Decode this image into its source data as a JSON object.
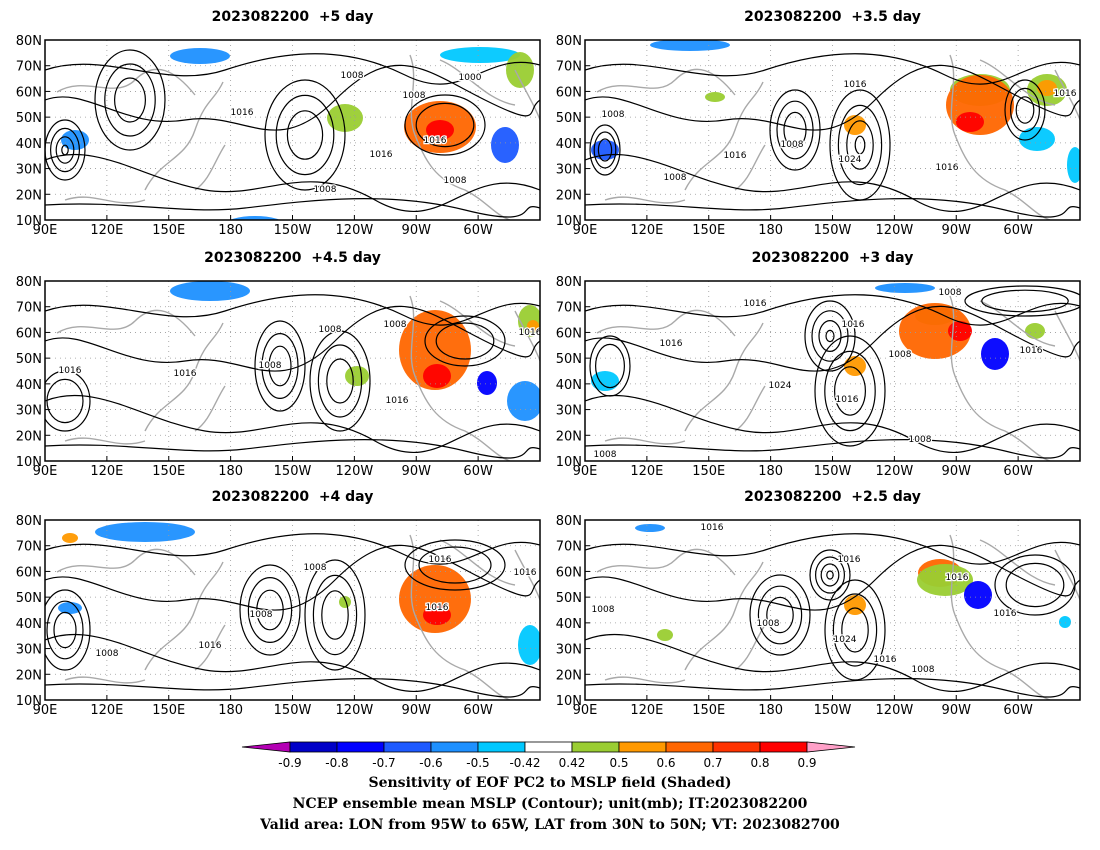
{
  "panels": [
    {
      "title": "2023082200  +5 day",
      "contour_labels": [
        "1008",
        "1000",
        "1016",
        "1008",
        "1016",
        "1008",
        "1016",
        "1008"
      ]
    },
    {
      "title": "2023082200  +3.5 day",
      "contour_labels": [
        "1016",
        "1016",
        "1008",
        "1008",
        "1016",
        "1024",
        "1008",
        "1016"
      ]
    },
    {
      "title": "2023082200  +4.5 day",
      "contour_labels": [
        "1008",
        "1016",
        "1016",
        "1008",
        "1008",
        "1016",
        "1016"
      ]
    },
    {
      "title": "2023082200  +3 day",
      "contour_labels": [
        "1016",
        "1008",
        "1016",
        "1016",
        "1008",
        "1024",
        "1016",
        "1016",
        "1008",
        "1008"
      ]
    },
    {
      "title": "2023082200  +4 day",
      "contour_labels": [
        "1008",
        "1016",
        "1016",
        "1016",
        "1008",
        "1016",
        "1008"
      ]
    },
    {
      "title": "2023082200  +2.5 day",
      "contour_labels": [
        "1016",
        "1016",
        "1016",
        "1008",
        "1008",
        "1024",
        "1016",
        "1016",
        "1008"
      ]
    }
  ],
  "lat_ticks": [
    "10N",
    "20N",
    "30N",
    "40N",
    "50N",
    "60N",
    "70N",
    "80N"
  ],
  "lon_ticks": [
    "90E",
    "120E",
    "150E",
    "180",
    "150W",
    "120W",
    "90W",
    "60W"
  ],
  "colorbar": {
    "labels": [
      "-0.9",
      "-0.8",
      "-0.7",
      "-0.6",
      "-0.5",
      "-0.42",
      "0.42",
      "0.5",
      "0.6",
      "0.7",
      "0.8",
      "0.9"
    ],
    "colors": [
      "#0000c8",
      "#0000ff",
      "#1e5aff",
      "#1e90ff",
      "#00c8ff",
      "#ffffff",
      "#9acd32",
      "#ff9900",
      "#ff6600",
      "#ff3300",
      "#ff0000"
    ],
    "low_color": "#b400b4",
    "high_color": "#ffa0c8"
  },
  "captions": [
    "Sensitivity of EOF PC2 to MSLP field (Shaded)",
    "NCEP ensemble mean MSLP (Contour); unit(mb); IT:2023082200",
    "Valid area: LON from 95W to 65W, LAT from 30N to 50N; VT: 2023082700"
  ]
}
